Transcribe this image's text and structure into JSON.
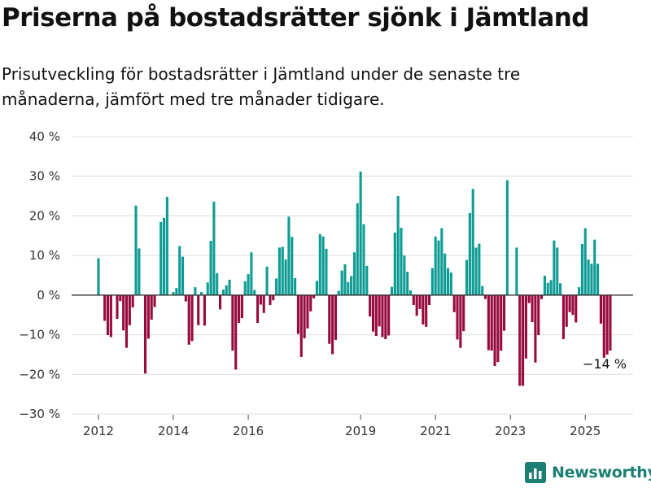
{
  "header": {
    "title": "Priserna på bostadsrätter sjönk i Jämtland",
    "subtitle": "Prisutveckling för bostadsrätter i Jämtland under de senaste tre månaderna, jämfört med tre månader tidigare."
  },
  "brand": {
    "name": "Newsworthy",
    "icon": "bar-chart-logo-icon"
  },
  "colors": {
    "positive": "#0e9c94",
    "negative": "#970a3e",
    "grid": "#dcdcdc",
    "zero": "#222222",
    "brand": "#1c7f74"
  },
  "chart_data": {
    "type": "bar",
    "title": "",
    "xlabel": "",
    "ylabel": "",
    "ylim": [
      -30,
      40
    ],
    "y_ticks": [
      40,
      30,
      20,
      10,
      0,
      -10,
      -20,
      -30
    ],
    "y_tick_suffix": " %",
    "x_ticks": [
      "2012",
      "2014",
      "2016",
      "2019",
      "2021",
      "2023",
      "2025"
    ],
    "grid": true,
    "annotation": {
      "text": "−14 %",
      "date": "2025-06"
    },
    "series": [
      {
        "name": "",
        "points": [
          {
            "date": "2012-01",
            "value": 9.3
          },
          {
            "date": "2012-03",
            "value": -6.5
          },
          {
            "date": "2012-04",
            "value": -10.1
          },
          {
            "date": "2012-05",
            "value": -10.6
          },
          {
            "date": "2012-07",
            "value": -6.0
          },
          {
            "date": "2012-08",
            "value": -1.5
          },
          {
            "date": "2012-09",
            "value": -8.9
          },
          {
            "date": "2012-10",
            "value": -13.3
          },
          {
            "date": "2012-11",
            "value": -7.6
          },
          {
            "date": "2012-12",
            "value": -3.1
          },
          {
            "date": "2013-01",
            "value": 22.6
          },
          {
            "date": "2013-02",
            "value": 11.8
          },
          {
            "date": "2013-04",
            "value": -19.8
          },
          {
            "date": "2013-05",
            "value": -11.0
          },
          {
            "date": "2013-06",
            "value": -6.2
          },
          {
            "date": "2013-07",
            "value": -3.0
          },
          {
            "date": "2013-09",
            "value": 18.5
          },
          {
            "date": "2013-10",
            "value": 19.5
          },
          {
            "date": "2013-11",
            "value": 24.8
          },
          {
            "date": "2014-01",
            "value": 0.8
          },
          {
            "date": "2014-02",
            "value": 1.8
          },
          {
            "date": "2014-03",
            "value": 12.4
          },
          {
            "date": "2014-04",
            "value": 9.7
          },
          {
            "date": "2014-05",
            "value": -1.6
          },
          {
            "date": "2014-06",
            "value": -12.5
          },
          {
            "date": "2014-07",
            "value": -11.6
          },
          {
            "date": "2014-08",
            "value": 2.0
          },
          {
            "date": "2014-09",
            "value": -7.6
          },
          {
            "date": "2014-10",
            "value": 0.8
          },
          {
            "date": "2014-11",
            "value": -7.7
          },
          {
            "date": "2014-12",
            "value": 3.2
          },
          {
            "date": "2015-01",
            "value": 13.7
          },
          {
            "date": "2015-02",
            "value": 23.6
          },
          {
            "date": "2015-03",
            "value": 5.5
          },
          {
            "date": "2015-04",
            "value": -3.6
          },
          {
            "date": "2015-05",
            "value": 1.4
          },
          {
            "date": "2015-06",
            "value": 2.5
          },
          {
            "date": "2015-07",
            "value": 3.9
          },
          {
            "date": "2015-08",
            "value": -14.0
          },
          {
            "date": "2015-09",
            "value": -18.8
          },
          {
            "date": "2015-10",
            "value": -7.0
          },
          {
            "date": "2015-11",
            "value": -5.8
          },
          {
            "date": "2015-12",
            "value": 3.5
          },
          {
            "date": "2016-01",
            "value": 5.3
          },
          {
            "date": "2016-02",
            "value": 10.8
          },
          {
            "date": "2016-03",
            "value": 1.3
          },
          {
            "date": "2016-04",
            "value": -7.0
          },
          {
            "date": "2016-05",
            "value": -2.4
          },
          {
            "date": "2016-06",
            "value": -4.5
          },
          {
            "date": "2016-07",
            "value": 7.2
          },
          {
            "date": "2016-08",
            "value": -2.5
          },
          {
            "date": "2016-09",
            "value": -1.3
          },
          {
            "date": "2016-10",
            "value": 4.2
          },
          {
            "date": "2016-11",
            "value": 12.0
          },
          {
            "date": "2016-12",
            "value": 12.2
          },
          {
            "date": "2017-01",
            "value": 9.0
          },
          {
            "date": "2017-02",
            "value": 19.8
          },
          {
            "date": "2017-03",
            "value": 14.7
          },
          {
            "date": "2017-04",
            "value": 4.3
          },
          {
            "date": "2017-05",
            "value": -9.8
          },
          {
            "date": "2017-06",
            "value": -15.6
          },
          {
            "date": "2017-07",
            "value": -10.9
          },
          {
            "date": "2017-08",
            "value": -8.4
          },
          {
            "date": "2017-09",
            "value": -4.1
          },
          {
            "date": "2017-10",
            "value": -0.8
          },
          {
            "date": "2017-11",
            "value": 3.6
          },
          {
            "date": "2017-12",
            "value": 15.4
          },
          {
            "date": "2018-01",
            "value": 14.8
          },
          {
            "date": "2018-02",
            "value": 11.7
          },
          {
            "date": "2018-03",
            "value": -12.3
          },
          {
            "date": "2018-04",
            "value": -14.9
          },
          {
            "date": "2018-05",
            "value": -11.3
          },
          {
            "date": "2018-06",
            "value": 1.1
          },
          {
            "date": "2018-07",
            "value": 6.2
          },
          {
            "date": "2018-08",
            "value": 7.8
          },
          {
            "date": "2018-09",
            "value": 3.3
          },
          {
            "date": "2018-10",
            "value": 4.8
          },
          {
            "date": "2018-11",
            "value": 10.8
          },
          {
            "date": "2018-12",
            "value": 23.2
          },
          {
            "date": "2019-01",
            "value": 31.2
          },
          {
            "date": "2019-02",
            "value": 17.9
          },
          {
            "date": "2019-03",
            "value": 7.4
          },
          {
            "date": "2019-04",
            "value": -5.4
          },
          {
            "date": "2019-05",
            "value": -9.2
          },
          {
            "date": "2019-06",
            "value": -10.3
          },
          {
            "date": "2019-07",
            "value": -7.9
          },
          {
            "date": "2019-08",
            "value": -10.6
          },
          {
            "date": "2019-09",
            "value": -11.1
          },
          {
            "date": "2019-10",
            "value": -10.2
          },
          {
            "date": "2019-11",
            "value": 2.1
          },
          {
            "date": "2019-12",
            "value": 15.8
          },
          {
            "date": "2020-01",
            "value": 25.0
          },
          {
            "date": "2020-02",
            "value": 17.0
          },
          {
            "date": "2020-03",
            "value": 10.0
          },
          {
            "date": "2020-04",
            "value": 5.9
          },
          {
            "date": "2020-05",
            "value": 1.2
          },
          {
            "date": "2020-06",
            "value": -2.5
          },
          {
            "date": "2020-07",
            "value": -5.2
          },
          {
            "date": "2020-08",
            "value": -3.5
          },
          {
            "date": "2020-09",
            "value": -7.4
          },
          {
            "date": "2020-10",
            "value": -8.0
          },
          {
            "date": "2020-11",
            "value": -2.5
          },
          {
            "date": "2020-12",
            "value": 6.8
          },
          {
            "date": "2021-01",
            "value": 14.8
          },
          {
            "date": "2021-02",
            "value": 13.8
          },
          {
            "date": "2021-03",
            "value": 16.9
          },
          {
            "date": "2021-04",
            "value": 10.5
          },
          {
            "date": "2021-05",
            "value": 6.8
          },
          {
            "date": "2021-06",
            "value": 5.7
          },
          {
            "date": "2021-07",
            "value": -4.3
          },
          {
            "date": "2021-08",
            "value": -11.2
          },
          {
            "date": "2021-09",
            "value": -13.3
          },
          {
            "date": "2021-10",
            "value": -9.1
          },
          {
            "date": "2021-11",
            "value": 8.9
          },
          {
            "date": "2021-12",
            "value": 20.7
          },
          {
            "date": "2022-01",
            "value": 26.8
          },
          {
            "date": "2022-02",
            "value": 12.0
          },
          {
            "date": "2022-03",
            "value": 13.0
          },
          {
            "date": "2022-04",
            "value": 2.3
          },
          {
            "date": "2022-05",
            "value": -1.0
          },
          {
            "date": "2022-06",
            "value": -13.9
          },
          {
            "date": "2022-07",
            "value": -14.0
          },
          {
            "date": "2022-08",
            "value": -17.9
          },
          {
            "date": "2022-09",
            "value": -16.9
          },
          {
            "date": "2022-10",
            "value": -14.0
          },
          {
            "date": "2022-11",
            "value": -9.0
          },
          {
            "date": "2022-12",
            "value": 29.0
          },
          {
            "date": "2023-03",
            "value": 12.0
          },
          {
            "date": "2023-04",
            "value": -22.9
          },
          {
            "date": "2023-05",
            "value": -22.9
          },
          {
            "date": "2023-06",
            "value": -16.0
          },
          {
            "date": "2023-07",
            "value": -2.0
          },
          {
            "date": "2023-08",
            "value": -6.8
          },
          {
            "date": "2023-09",
            "value": -17.0
          },
          {
            "date": "2023-10",
            "value": -10.1
          },
          {
            "date": "2023-11",
            "value": -1.0
          },
          {
            "date": "2023-12",
            "value": 4.9
          },
          {
            "date": "2024-01",
            "value": 3.1
          },
          {
            "date": "2024-02",
            "value": 3.8
          },
          {
            "date": "2024-03",
            "value": 13.8
          },
          {
            "date": "2024-04",
            "value": 12.0
          },
          {
            "date": "2024-05",
            "value": 3.0
          },
          {
            "date": "2024-06",
            "value": -11.1
          },
          {
            "date": "2024-07",
            "value": -8.0
          },
          {
            "date": "2024-08",
            "value": -4.3
          },
          {
            "date": "2024-09",
            "value": -5.0
          },
          {
            "date": "2024-10",
            "value": -6.9
          },
          {
            "date": "2024-11",
            "value": 2.0
          },
          {
            "date": "2024-12",
            "value": 12.9
          },
          {
            "date": "2025-01",
            "value": 16.9
          },
          {
            "date": "2025-02",
            "value": 9.0
          },
          {
            "date": "2025-03",
            "value": 7.9
          },
          {
            "date": "2025-04",
            "value": 14.0
          },
          {
            "date": "2025-05",
            "value": 7.9
          },
          {
            "date": "2025-06",
            "value": -7.2
          },
          {
            "date": "2025-07",
            "value": -15.8
          },
          {
            "date": "2025-08",
            "value": -15.0
          },
          {
            "date": "2025-09",
            "value": -14.0
          }
        ]
      }
    ]
  }
}
